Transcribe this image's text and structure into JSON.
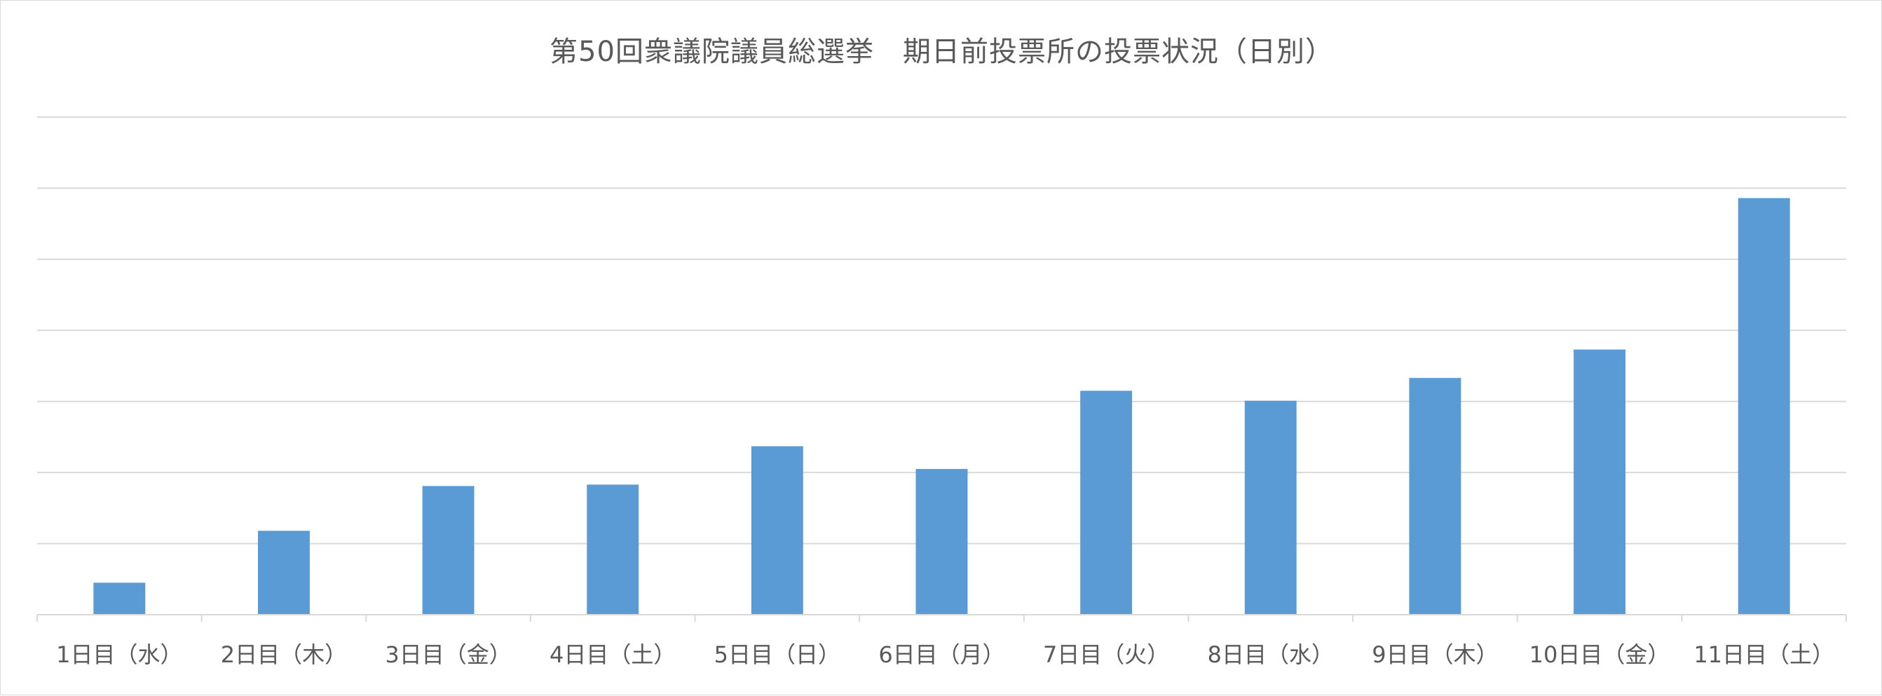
{
  "chart_data": {
    "type": "bar",
    "title": "第50回衆議院議員総選挙　期日前投票所の投票状況（日別）",
    "categories": [
      "1日目（水）",
      "2日目（木）",
      "3日目（金）",
      "4日目（土）",
      "5日目（日）",
      "6日目（月）",
      "7日目（火）",
      "8日目（水）",
      "9日目（木）",
      "10日目（金）",
      "11日目（土）"
    ],
    "values": [
      0.45,
      1.18,
      1.81,
      1.83,
      2.37,
      2.05,
      3.15,
      3.01,
      3.33,
      3.73,
      5.86
    ],
    "ylim": [
      0,
      7
    ],
    "gridlines": 7,
    "grid": true,
    "y_tick_labels_shown": false,
    "legend": "none",
    "bar_color": "#5B9BD5",
    "grid_color": "#d9d9d9",
    "text_color": "#595959"
  }
}
